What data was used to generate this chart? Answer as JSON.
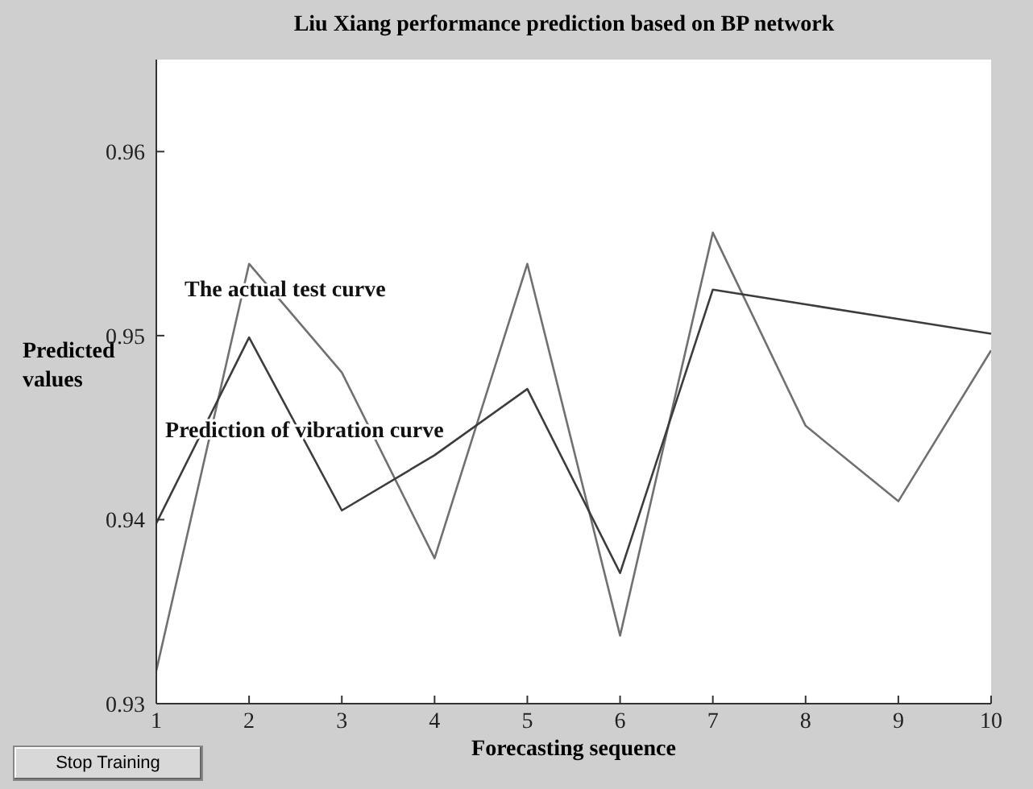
{
  "chart_data": {
    "type": "line",
    "title": "Liu Xiang performance prediction based on BP network",
    "xlabel": "Forecasting sequence",
    "ylabel": "Predicted values",
    "annotations": [
      "Stop Training"
    ],
    "x": [
      1,
      2,
      3,
      4,
      5,
      6,
      7,
      8,
      9,
      10
    ],
    "series": [
      {
        "name": "The actual test curve",
        "color": "#707070",
        "values": [
          0.9318,
          0.9539,
          0.948,
          0.9379,
          0.9539,
          0.9337,
          0.9556,
          0.9451,
          0.941,
          0.9492
        ]
      },
      {
        "name": "Prediction of vibration curve",
        "color": "#3c3c3c",
        "values": [
          0.9398,
          0.9499,
          0.9405,
          0.9435,
          0.9471,
          0.9371,
          0.9525,
          0.9517,
          0.9509,
          0.9501
        ]
      }
    ],
    "xlim": [
      1,
      10
    ],
    "xticks": [
      1,
      2,
      3,
      4,
      5,
      6,
      7,
      8,
      9,
      10
    ],
    "ylim": [
      0.93,
      0.965
    ],
    "yticks": [
      0.93,
      0.94,
      0.95,
      0.96
    ],
    "marker": "none",
    "line_style": "solid"
  }
}
